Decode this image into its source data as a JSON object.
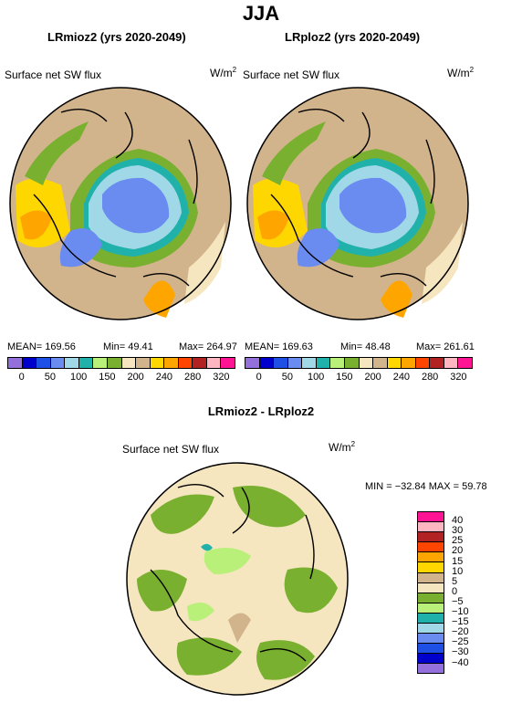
{
  "season": "JJA",
  "panels": [
    {
      "title": "LRmioz2 (yrs 2020-2049)",
      "field": "Surface net SW flux",
      "units": "W/m",
      "units_sup": "2",
      "mean": "MEAN=  169.56",
      "min": "Min=   49.41",
      "max": "Max=  264.97"
    },
    {
      "title": "LRploz2 (yrs 2020-2049)",
      "field": "Surface net SW flux",
      "units": "W/m",
      "units_sup": "2",
      "mean": "MEAN=  169.63",
      "min": "Min=   48.48",
      "max": "Max=  261.61"
    },
    {
      "title": "LRmioz2 - LRploz2",
      "field": "Surface net SW flux",
      "units": "W/m",
      "units_sup": "2",
      "minmax": "MIN = −32.84  MAX =  59.78"
    }
  ],
  "chart_data": [
    {
      "type": "heatmap",
      "title": "LRmioz2 (yrs 2020-2049)",
      "subtitle": "Surface net SW flux",
      "units": "W/m2",
      "projection": "north polar stereographic",
      "mean": 169.56,
      "min": 49.41,
      "max": 264.97,
      "colorbar_ticks": [
        "0",
        "50",
        "100",
        "150",
        "200",
        "240",
        "280",
        "320"
      ]
    },
    {
      "type": "heatmap",
      "title": "LRploz2 (yrs 2020-2049)",
      "subtitle": "Surface net SW flux",
      "units": "W/m2",
      "projection": "north polar stereographic",
      "mean": 169.63,
      "min": 48.48,
      "max": 261.61,
      "colorbar_ticks": [
        "0",
        "50",
        "100",
        "150",
        "200",
        "240",
        "280",
        "320"
      ]
    },
    {
      "type": "heatmap",
      "title": "LRmioz2 - LRploz2",
      "subtitle": "Surface net SW flux",
      "units": "W/m2",
      "projection": "north polar stereographic",
      "min": -32.84,
      "max": 59.78,
      "colorbar_labels": [
        "40",
        "30",
        "25",
        "20",
        "15",
        "10",
        "5",
        "0",
        "−5",
        "−10",
        "−15",
        "−20",
        "−25",
        "−30",
        "−40"
      ]
    }
  ],
  "colors": {
    "abs_scale": [
      "#9370db",
      "#0000cd",
      "#1e50e6",
      "#6a8cf0",
      "#a0d8e8",
      "#20b2aa",
      "#b8f07a",
      "#7ab030",
      "#f5e6c0",
      "#d2b48c",
      "#ffd700",
      "#ffa500",
      "#ff4500",
      "#b22222",
      "#ffb6c1",
      "#ff1493"
    ],
    "diff_scale": [
      "#ff1493",
      "#ffb6c1",
      "#b22222",
      "#ff4500",
      "#ffa500",
      "#ffd700",
      "#d2b48c",
      "#f5e6c0",
      "#7ab030",
      "#b8f07a",
      "#20b2aa",
      "#a0d8e8",
      "#6a8cf0",
      "#1e50e6",
      "#0000cd",
      "#9370db"
    ]
  }
}
